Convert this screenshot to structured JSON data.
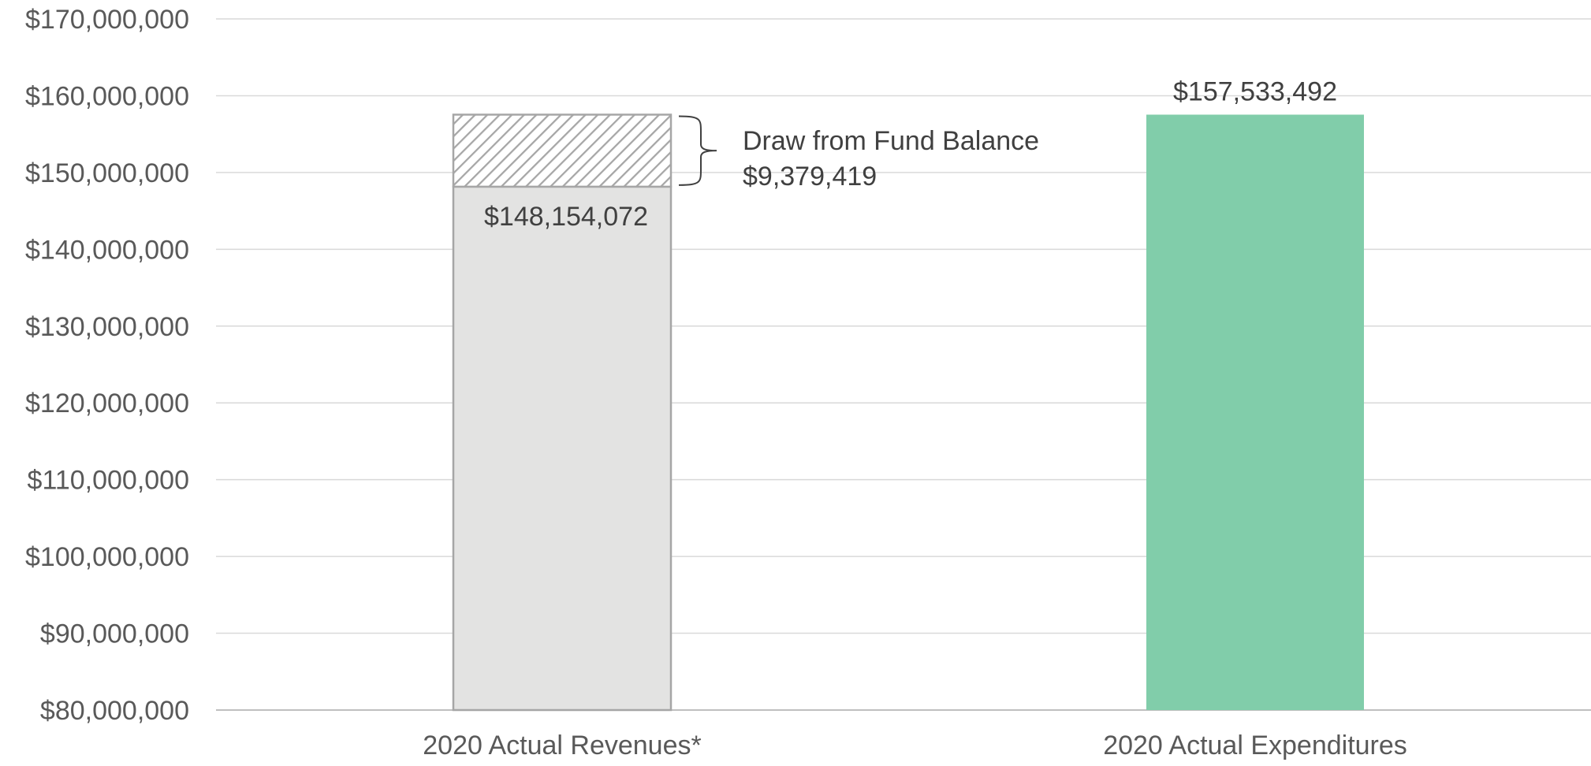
{
  "chart_data": {
    "type": "bar",
    "title": "",
    "xlabel": "",
    "ylabel": "",
    "ylim": [
      80000000,
      170000000
    ],
    "y_ticks": [
      {
        "value": 80000000,
        "label": "$80,000,000"
      },
      {
        "value": 90000000,
        "label": "$90,000,000"
      },
      {
        "value": 100000000,
        "label": "$100,000,000"
      },
      {
        "value": 110000000,
        "label": "$110,000,000"
      },
      {
        "value": 120000000,
        "label": "$120,000,000"
      },
      {
        "value": 130000000,
        "label": "$130,000,000"
      },
      {
        "value": 140000000,
        "label": "$140,000,000"
      },
      {
        "value": 150000000,
        "label": "$150,000,000"
      },
      {
        "value": 160000000,
        "label": "$160,000,000"
      },
      {
        "value": 170000000,
        "label": "$170,000,000"
      }
    ],
    "grid": true,
    "categories": [
      "2020 Actual Revenues*",
      "2020 Actual Expenditures"
    ],
    "bars": [
      {
        "category": "2020 Actual Revenues*",
        "segments": [
          {
            "value": 148154072,
            "label": "$148,154,072",
            "color": "#e3e3e2",
            "style": "solid"
          },
          {
            "value": 9379419,
            "label": "$9,379,419",
            "color": "#a6a6a6",
            "style": "hatched"
          }
        ]
      },
      {
        "category": "2020 Actual Expenditures",
        "segments": [
          {
            "value": 157533492,
            "label": "$157,533,492",
            "color": "#81cdaa",
            "style": "solid"
          }
        ]
      }
    ],
    "annotation": {
      "text": "Draw from Fund Balance",
      "value_label": "$9,379,419"
    }
  }
}
